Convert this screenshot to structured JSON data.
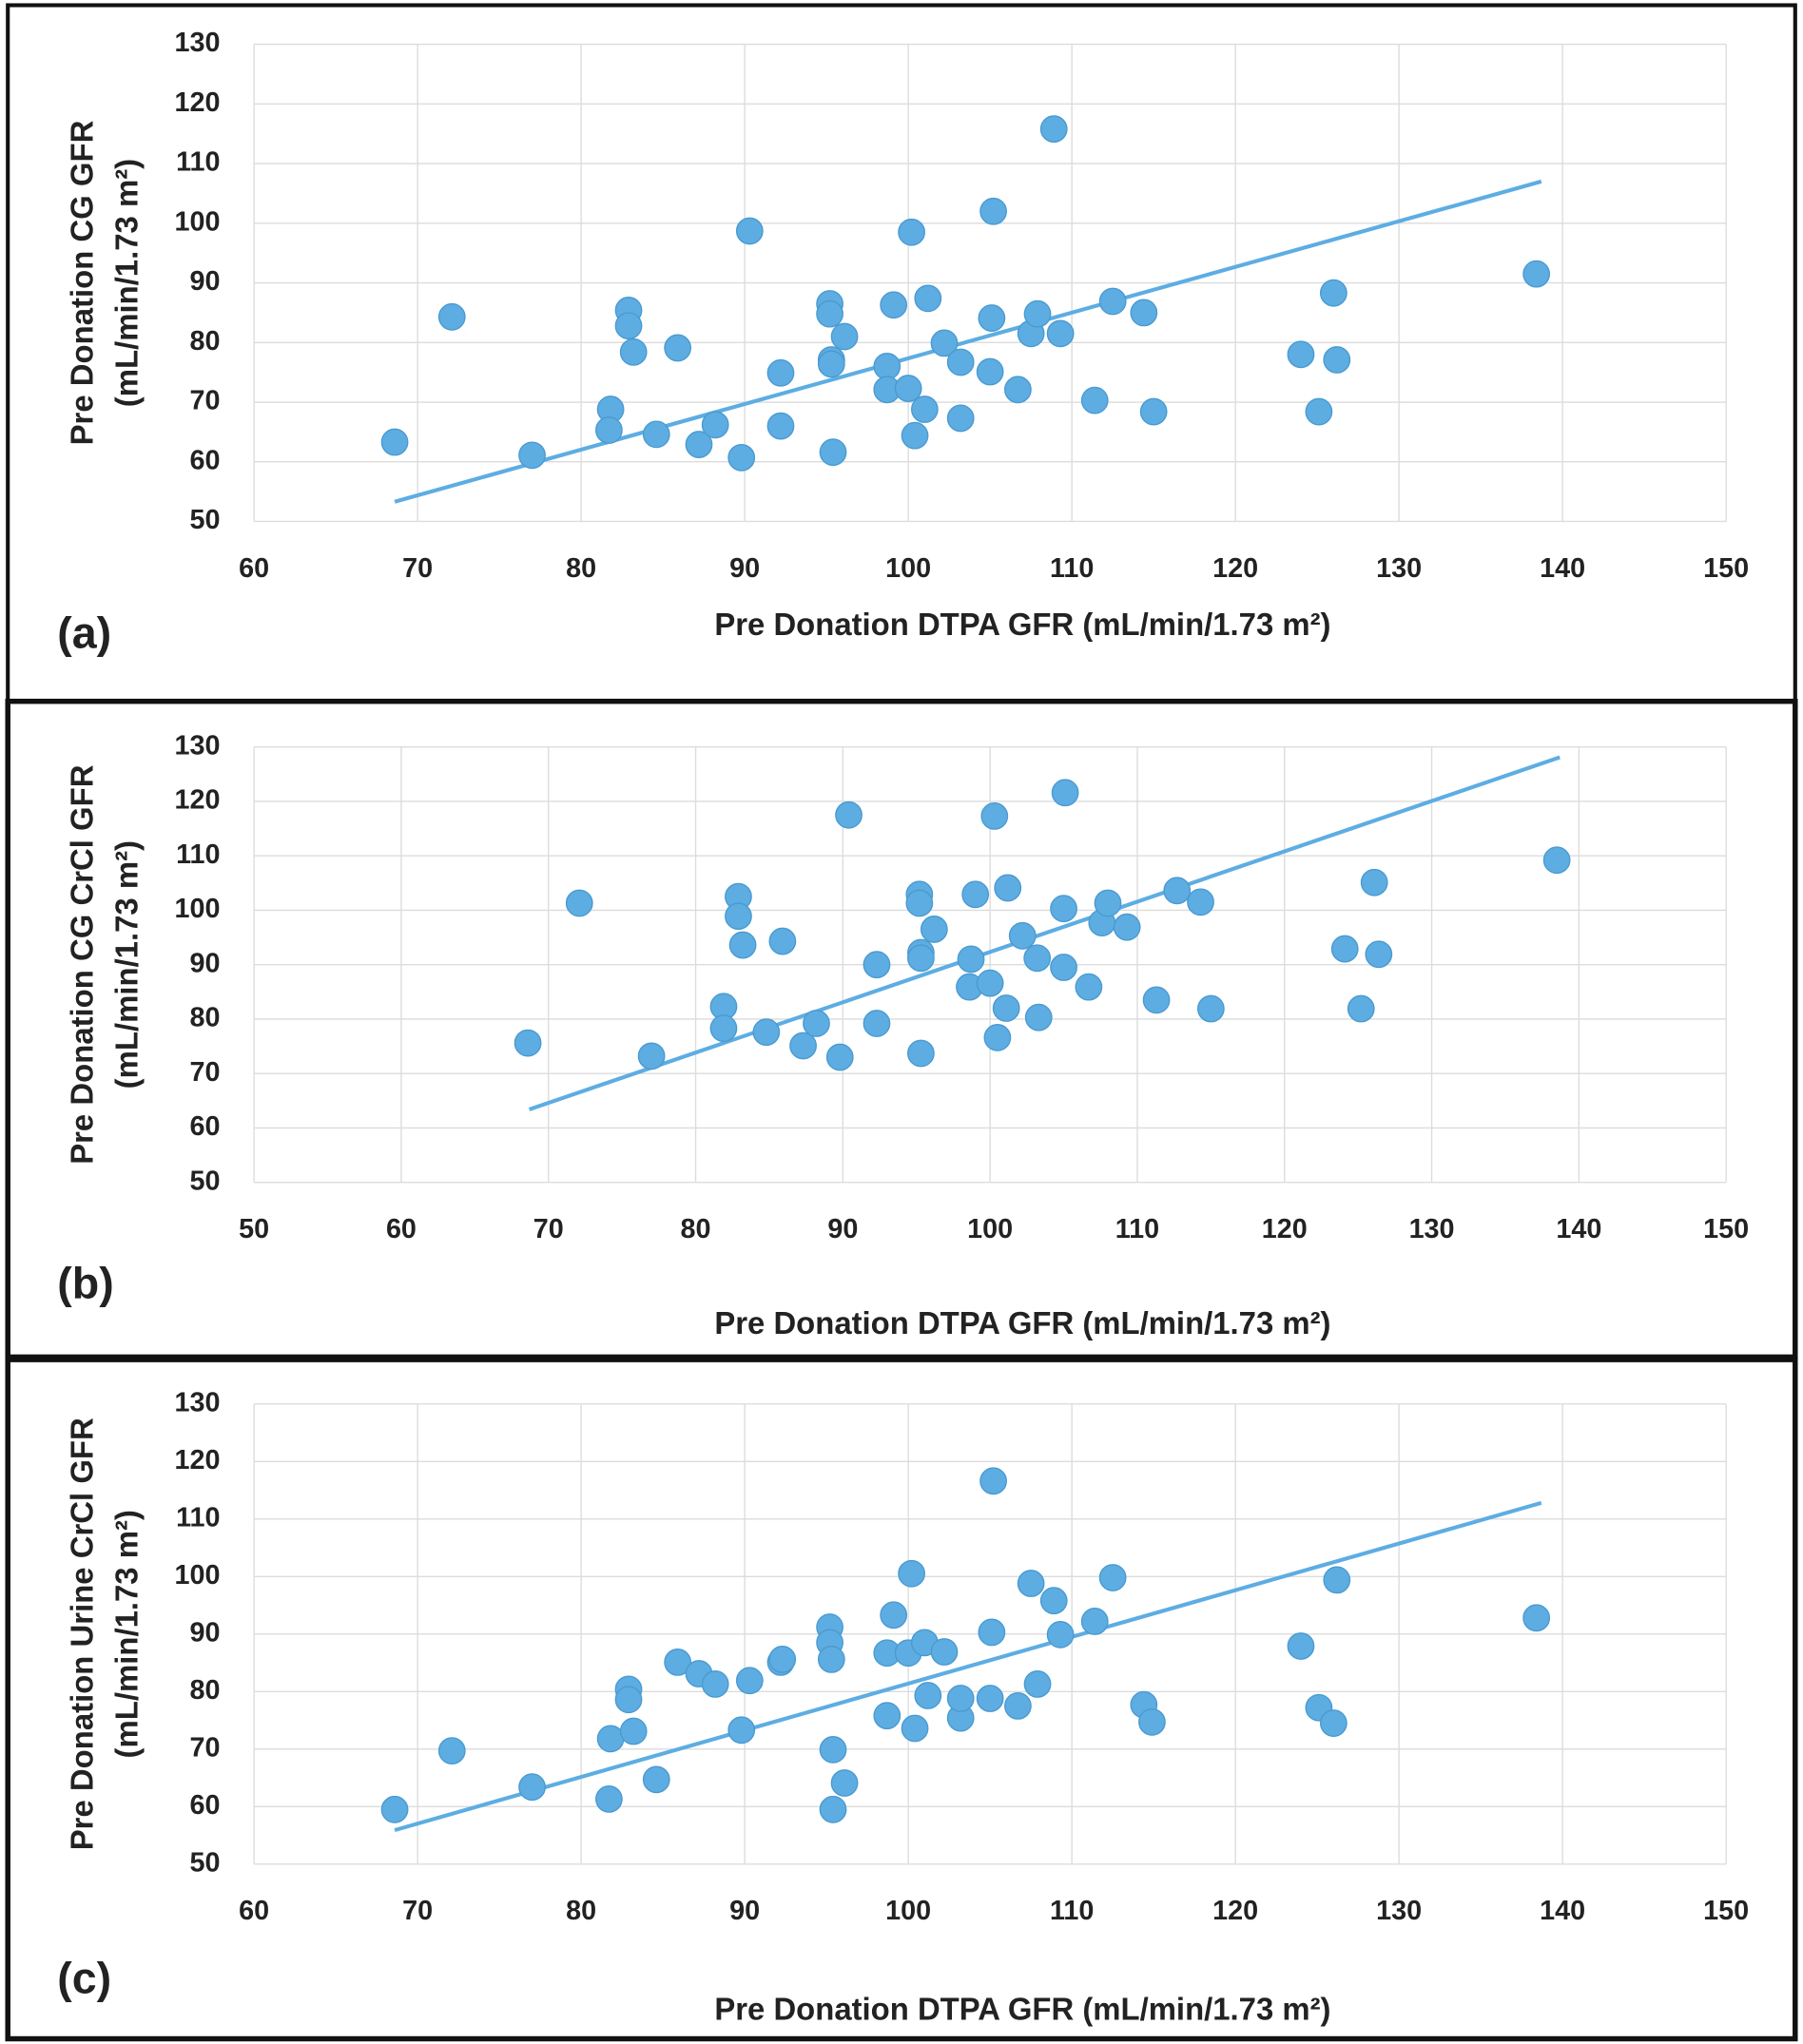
{
  "chart_data": [
    {
      "type": "scatter",
      "panel_label": "(a)",
      "xlabel": "Pre  Donation  DTPA GFR (mL/min/1.73 m²)",
      "ylabel": [
        "Pre  Donation  CG GFR",
        "(mL/min/1.73 m²)"
      ],
      "color": "#5dade2",
      "grid": true,
      "xlim": [
        60,
        150
      ],
      "xticks": [
        60,
        70,
        80,
        90,
        100,
        110,
        120,
        130,
        140,
        150
      ],
      "ylim": [
        50,
        130
      ],
      "yticks": [
        50,
        60,
        70,
        80,
        90,
        100,
        110,
        120,
        130
      ],
      "x": [
        68.6,
        72.1,
        77.0,
        81.8,
        81.7,
        82.9,
        82.9,
        83.2,
        84.6,
        85.9,
        87.2,
        88.2,
        89.8,
        90.3,
        92.2,
        92.2,
        95.2,
        95.2,
        95.3,
        95.3,
        95.4,
        96.1,
        98.7,
        98.7,
        99.1,
        100.0,
        100.2,
        100.4,
        101.0,
        101.2,
        102.2,
        103.2,
        103.2,
        105.0,
        105.1,
        105.2,
        106.7,
        107.5,
        107.9,
        108.9,
        109.3,
        111.4,
        112.5,
        114.4,
        115.0,
        124.0,
        125.1,
        126.0,
        126.2,
        138.4
      ],
      "y": [
        63.3,
        84.3,
        61.1,
        68.8,
        65.3,
        85.4,
        82.8,
        78.4,
        64.6,
        79.1,
        62.9,
        66.2,
        60.7,
        98.7,
        74.9,
        66.0,
        86.5,
        84.8,
        77.1,
        76.4,
        61.6,
        81.0,
        76.0,
        72.1,
        86.3,
        72.3,
        98.5,
        64.4,
        68.8,
        87.4,
        79.9,
        76.7,
        67.3,
        75.1,
        84.1,
        102.0,
        72.1,
        81.5,
        84.8,
        115.8,
        81.5,
        70.3,
        86.9,
        85.0,
        68.4,
        78.0,
        68.4,
        88.3,
        77.1,
        91.5
      ],
      "trendline": {
        "x": [
          68.6,
          138.7
        ],
        "y": [
          53.3,
          107.0
        ]
      }
    },
    {
      "type": "scatter",
      "panel_label": "(b)",
      "xlabel": "Pre Donation   DTPA GFR (mL/min/1.73 m²)",
      "ylabel": [
        "Pre Donation  CG CrCl GFR",
        "(mL/min/1.73 m²)"
      ],
      "color": "#5dade2",
      "grid": true,
      "xlim": [
        50,
        150
      ],
      "xticks": [
        50,
        60,
        70,
        80,
        90,
        100,
        110,
        120,
        130,
        140,
        150
      ],
      "ylim": [
        50,
        130
      ],
      "yticks": [
        50,
        60,
        70,
        80,
        90,
        100,
        110,
        120,
        130
      ],
      "x": [
        68.6,
        72.1,
        77.0,
        81.9,
        81.9,
        82.9,
        82.9,
        83.2,
        84.8,
        85.9,
        87.3,
        88.2,
        89.8,
        90.4,
        92.3,
        92.3,
        95.2,
        95.2,
        95.3,
        95.3,
        95.3,
        96.2,
        98.6,
        98.7,
        99.0,
        100.0,
        100.3,
        100.5,
        101.1,
        101.2,
        102.2,
        103.2,
        103.3,
        105.0,
        105.0,
        105.1,
        106.7,
        107.6,
        108.0,
        109.3,
        111.3,
        112.7,
        114.3,
        115.0,
        124.1,
        125.2,
        126.1,
        126.4,
        138.5
      ],
      "y": [
        75.6,
        101.3,
        73.2,
        82.3,
        78.3,
        102.5,
        98.9,
        93.6,
        77.6,
        94.3,
        75.1,
        79.2,
        73.0,
        117.5,
        90.0,
        79.2,
        102.9,
        101.3,
        92.2,
        91.2,
        73.7,
        96.5,
        85.9,
        91.0,
        102.9,
        86.6,
        117.3,
        76.6,
        82.0,
        104.1,
        95.3,
        91.2,
        80.3,
        89.5,
        100.3,
        121.6,
        85.9,
        97.7,
        101.3,
        96.9,
        83.5,
        103.6,
        101.5,
        81.9,
        92.9,
        81.9,
        105.1,
        91.9,
        109.2
      ],
      "trendline": {
        "x": [
          68.7,
          138.7
        ],
        "y": [
          63.4,
          128.1
        ]
      }
    },
    {
      "type": "scatter",
      "panel_label": "(c)",
      "xlabel": "Pre Donation DTPA GFR (mL/min/1.73 m²)",
      "ylabel": [
        "Pre Donation Urine CrCl GFR",
        "(mL/min/1.73 m²)"
      ],
      "color": "#5dade2",
      "grid": true,
      "xlim": [
        60,
        150
      ],
      "xticks": [
        60,
        70,
        80,
        90,
        100,
        110,
        120,
        130,
        140,
        150
      ],
      "ylim": [
        50,
        130
      ],
      "yticks": [
        50,
        60,
        70,
        80,
        90,
        100,
        110,
        120,
        130
      ],
      "x": [
        68.6,
        72.1,
        77.0,
        81.7,
        81.8,
        82.9,
        82.9,
        83.2,
        84.6,
        85.9,
        87.2,
        88.2,
        89.8,
        90.3,
        92.2,
        92.3,
        95.2,
        95.2,
        95.3,
        95.4,
        95.4,
        96.1,
        98.7,
        98.7,
        99.1,
        100.0,
        100.2,
        100.4,
        101.0,
        101.2,
        102.2,
        103.2,
        103.2,
        105.0,
        105.1,
        105.2,
        106.7,
        107.5,
        107.9,
        108.9,
        109.3,
        111.4,
        112.5,
        114.4,
        114.9,
        124.0,
        125.1,
        126.0,
        126.2,
        138.4
      ],
      "y": [
        59.5,
        69.7,
        63.4,
        61.3,
        71.8,
        80.4,
        78.6,
        73.1,
        64.7,
        85.1,
        83.1,
        81.3,
        73.3,
        81.9,
        85.1,
        85.6,
        91.2,
        88.5,
        85.6,
        69.9,
        59.5,
        64.1,
        75.8,
        86.7,
        93.3,
        86.7,
        100.5,
        73.6,
        88.5,
        79.3,
        86.9,
        75.4,
        78.8,
        78.8,
        90.3,
        116.6,
        77.5,
        98.8,
        81.3,
        95.8,
        89.9,
        92.2,
        99.8,
        77.7,
        74.7,
        87.9,
        77.2,
        74.5,
        99.4,
        92.8
      ],
      "trendline": {
        "x": [
          68.6,
          138.7
        ],
        "y": [
          55.9,
          112.8
        ]
      }
    }
  ]
}
